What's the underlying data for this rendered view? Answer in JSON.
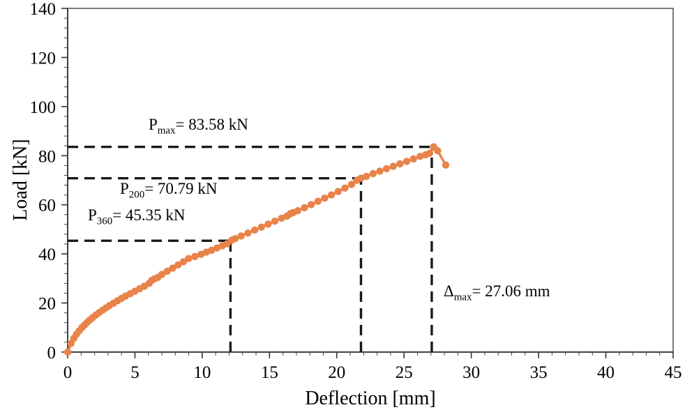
{
  "chart_data": {
    "type": "line",
    "title": "",
    "xlabel": "Deflection [mm]",
    "ylabel": "Load [kN]",
    "xlim": [
      0,
      45
    ],
    "ylim": [
      0,
      140
    ],
    "x_ticks": [
      0,
      5,
      10,
      15,
      20,
      25,
      30,
      35,
      40,
      45
    ],
    "y_ticks": [
      0,
      20,
      40,
      60,
      80,
      100,
      120,
      140
    ],
    "x_minor_step": 1,
    "y_minor_step": 4,
    "grid": false,
    "legend": "none",
    "colors": {
      "curve": "#E8834A",
      "guide": "#1a1a1a",
      "axis": "#404040",
      "frame": "#595959",
      "text": "#000000"
    },
    "series": [
      {
        "name": "load-deflection-curve",
        "color": "#E8834A",
        "marker": "circle",
        "points": [
          [
            0,
            0
          ],
          [
            0.25,
            3.5
          ],
          [
            0.45,
            5.5
          ],
          [
            0.65,
            7.2
          ],
          [
            0.85,
            8.6
          ],
          [
            1.05,
            9.9
          ],
          [
            1.25,
            11
          ],
          [
            1.45,
            12.1
          ],
          [
            1.65,
            13.1
          ],
          [
            1.85,
            14
          ],
          [
            2.1,
            15.1
          ],
          [
            2.35,
            16.1
          ],
          [
            2.6,
            17.1
          ],
          [
            2.85,
            18
          ],
          [
            3.1,
            18.9
          ],
          [
            3.4,
            19.9
          ],
          [
            3.7,
            20.9
          ],
          [
            4,
            21.9
          ],
          [
            4.3,
            22.8
          ],
          [
            4.65,
            23.8
          ],
          [
            5,
            24.8
          ],
          [
            5.35,
            25.8
          ],
          [
            5.7,
            26.8
          ],
          [
            6.05,
            28
          ],
          [
            6.25,
            29.2
          ],
          [
            6.45,
            29.8
          ],
          [
            6.7,
            30.4
          ],
          [
            7,
            31.6
          ],
          [
            7.4,
            32.9
          ],
          [
            7.8,
            34.2
          ],
          [
            8.2,
            35.5
          ],
          [
            8.6,
            36.8
          ],
          [
            9,
            38.1
          ],
          [
            9.45,
            38.9
          ],
          [
            9.9,
            39.8
          ],
          [
            10.3,
            40.7
          ],
          [
            10.7,
            41.5
          ],
          [
            11.1,
            42.4
          ],
          [
            11.5,
            43.3
          ],
          [
            11.85,
            44.1
          ],
          [
            12.2,
            45.6
          ],
          [
            12.45,
            46.2
          ],
          [
            12.9,
            47.3
          ],
          [
            13.4,
            48.5
          ],
          [
            13.9,
            49.7
          ],
          [
            14.4,
            50.9
          ],
          [
            14.9,
            52.1
          ],
          [
            15.4,
            53.3
          ],
          [
            15.9,
            54.5
          ],
          [
            16.3,
            55.4
          ],
          [
            16.55,
            56.4
          ],
          [
            16.75,
            56.8
          ],
          [
            17.1,
            57.6
          ],
          [
            17.6,
            58.8
          ],
          [
            18.1,
            60.1
          ],
          [
            18.6,
            61.4
          ],
          [
            19.1,
            62.7
          ],
          [
            19.6,
            64
          ],
          [
            20.1,
            65.4
          ],
          [
            20.6,
            66.8
          ],
          [
            21.1,
            68.3
          ],
          [
            21.5,
            70
          ],
          [
            21.8,
            70.8
          ],
          [
            22.2,
            71.6
          ],
          [
            22.7,
            72.7
          ],
          [
            23.2,
            73.7
          ],
          [
            23.7,
            74.7
          ],
          [
            24.2,
            75.7
          ],
          [
            24.7,
            76.7
          ],
          [
            25.2,
            77.7
          ],
          [
            25.7,
            78.7
          ],
          [
            26.2,
            79.7
          ],
          [
            26.6,
            80.4
          ],
          [
            26.9,
            81
          ],
          [
            27.2,
            83.6
          ],
          [
            27.5,
            82
          ],
          [
            28.1,
            76.2
          ]
        ]
      }
    ],
    "guides": [
      {
        "id": "p360",
        "load": 45.35,
        "deflection": 12.1
      },
      {
        "id": "p200",
        "load": 70.79,
        "deflection": 21.8
      },
      {
        "id": "pmax",
        "load": 83.58,
        "deflection": 27.06
      }
    ],
    "annotations": [
      {
        "main": "P",
        "sub": "max",
        "rest": "= 83.58 kN"
      },
      {
        "main": "P",
        "sub": "200",
        "rest": "= 70.79 kN"
      },
      {
        "main": "P",
        "sub": "360",
        "rest": "= 45.35 kN"
      },
      {
        "main": "Δ",
        "sub": "max",
        "rest": "= 27.06 mm"
      }
    ]
  }
}
